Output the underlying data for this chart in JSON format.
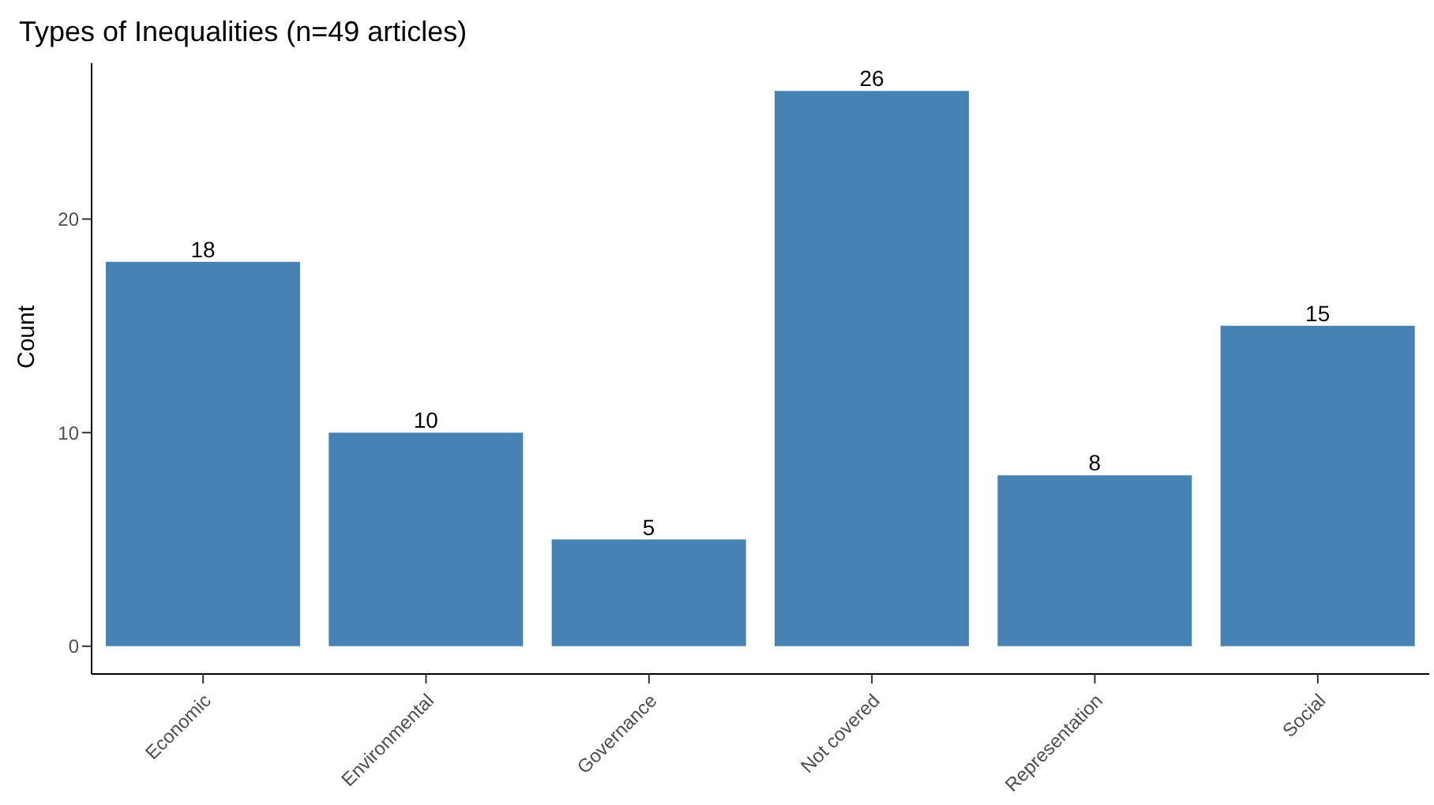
{
  "chart_data": {
    "type": "bar",
    "title": "Types of Inequalities (n=49 articles)",
    "ylabel": "Count",
    "categories": [
      "Economic",
      "Environmental",
      "Governance",
      "Not covered",
      "Representation",
      "Social"
    ],
    "values": [
      18,
      10,
      5,
      26,
      8,
      15
    ],
    "color": "#4682b4",
    "ylim": [
      -1.3,
      27.3
    ],
    "yticks": [
      0,
      10,
      20
    ],
    "grid": false,
    "data_labels": true
  }
}
